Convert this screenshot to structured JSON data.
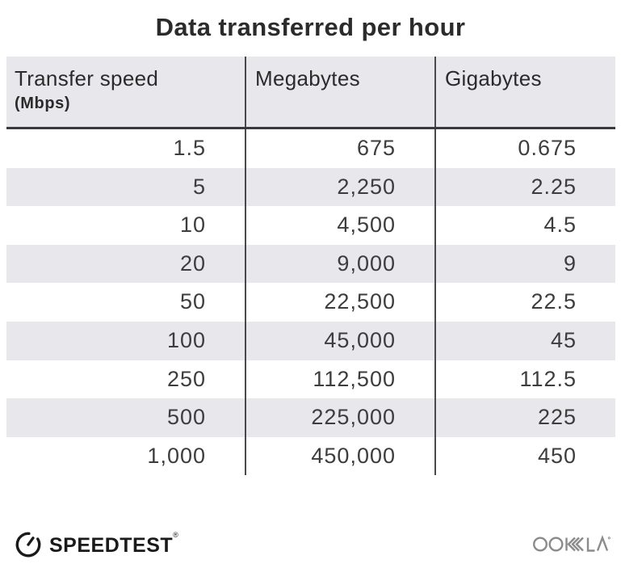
{
  "title": "Data transferred per hour",
  "table": {
    "columns": [
      {
        "label": "Transfer speed",
        "sublabel": "(Mbps)"
      },
      {
        "label": "Megabytes"
      },
      {
        "label": "Gigabytes"
      }
    ],
    "rows": [
      [
        "1.5",
        "675",
        "0.675"
      ],
      [
        "5",
        "2,250",
        "2.25"
      ],
      [
        "10",
        "4,500",
        "4.5"
      ],
      [
        "20",
        "9,000",
        "9"
      ],
      [
        "50",
        "22,500",
        "22.5"
      ],
      [
        "100",
        "45,000",
        "45"
      ],
      [
        "250",
        "112,500",
        "112.5"
      ],
      [
        "500",
        "225,000",
        "225"
      ],
      [
        "1,000",
        "450,000",
        "450"
      ]
    ]
  },
  "chart_data": {
    "type": "table",
    "title": "Data transferred per hour",
    "columns": [
      "Transfer speed (Mbps)",
      "Megabytes",
      "Gigabytes"
    ],
    "transfer_speed_mbps": [
      1.5,
      5,
      10,
      20,
      50,
      100,
      250,
      500,
      1000
    ],
    "megabytes": [
      675,
      2250,
      4500,
      9000,
      22500,
      45000,
      112500,
      225000,
      450000
    ],
    "gigabytes": [
      0.675,
      2.25,
      4.5,
      9,
      22.5,
      45,
      112.5,
      225,
      450
    ],
    "layout": "alternating row shading, right-aligned numbers, column dividers"
  },
  "footer": {
    "speedtest_label": "SPEEDTEST",
    "speedtest_reg": "®",
    "ookla_label": "OOKLA"
  },
  "colors": {
    "title-color": "#2b2b2b",
    "text-color": "#3d3d3d",
    "shade": "#e8e8ec",
    "divider": "#4a4a4a",
    "rule": "#3a3a3a",
    "logo": "#1a1a1a",
    "ookla": "#8b8b8b"
  }
}
